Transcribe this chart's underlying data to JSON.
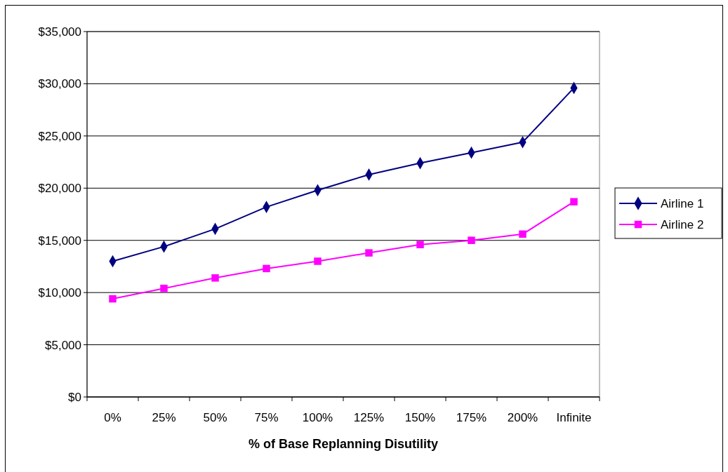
{
  "chart_data": {
    "type": "line",
    "xlabel": "% of Base Replanning Disutility",
    "categories": [
      "0%",
      "25%",
      "50%",
      "75%",
      "100%",
      "125%",
      "150%",
      "175%",
      "200%",
      "Infinite"
    ],
    "series": [
      {
        "name": "Airline 1",
        "color": "#000080",
        "marker": "diamond",
        "values": [
          13000,
          14400,
          16100,
          18200,
          19800,
          21300,
          22400,
          23400,
          24400,
          29600
        ]
      },
      {
        "name": "Airline 2",
        "color": "#ff00ff",
        "marker": "square",
        "values": [
          9400,
          10400,
          11400,
          12300,
          13000,
          13800,
          14600,
          15000,
          15600,
          18700
        ]
      }
    ],
    "ylim": [
      0,
      35000
    ],
    "yticks": [
      {
        "value": 0,
        "label": "$0"
      },
      {
        "value": 5000,
        "label": "$5,000"
      },
      {
        "value": 10000,
        "label": "$10,000"
      },
      {
        "value": 15000,
        "label": "$15,000"
      },
      {
        "value": 20000,
        "label": "$20,000"
      },
      {
        "value": 25000,
        "label": "$25,000"
      },
      {
        "value": 30000,
        "label": "$30,000"
      },
      {
        "value": 35000,
        "label": "$35,000"
      }
    ],
    "grid": "y",
    "legend": "right",
    "line_style": "solid"
  }
}
